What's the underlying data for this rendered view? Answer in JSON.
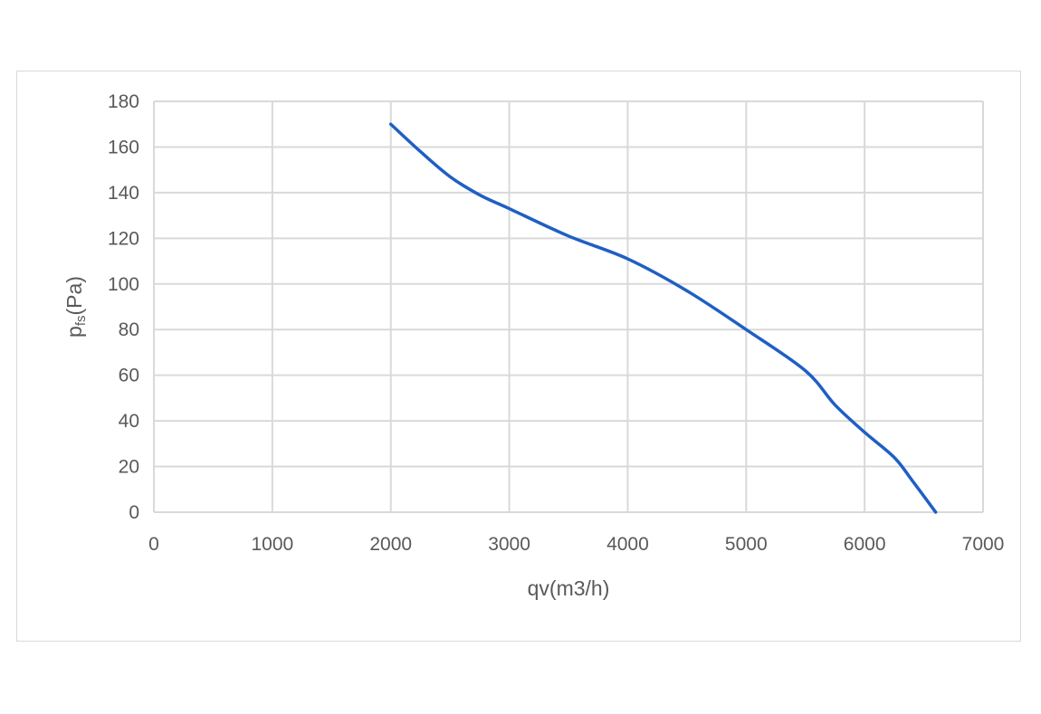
{
  "chart_data": {
    "type": "line",
    "title": "",
    "xlabel": "qv(m3/h)",
    "ylabel_main": "p",
    "ylabel_sub": "fs",
    "ylabel_rest": "(Pa)",
    "xlim": [
      0,
      7000
    ],
    "ylim": [
      0,
      180
    ],
    "xticks": [
      0,
      1000,
      2000,
      3000,
      4000,
      5000,
      6000,
      7000
    ],
    "yticks": [
      0,
      20,
      40,
      60,
      80,
      100,
      120,
      140,
      160,
      180
    ],
    "grid": true,
    "legend": "none",
    "series": [
      {
        "color": "#1f5fc4",
        "x": [
          2000,
          2250,
          2500,
          2750,
          3000,
          3500,
          4000,
          4500,
          5000,
          5500,
          5750,
          6000,
          6250,
          6400,
          6600
        ],
        "y": [
          170,
          158,
          147,
          139,
          133,
          121,
          111,
          97,
          80,
          62,
          47,
          35,
          24,
          14,
          0
        ]
      }
    ]
  }
}
